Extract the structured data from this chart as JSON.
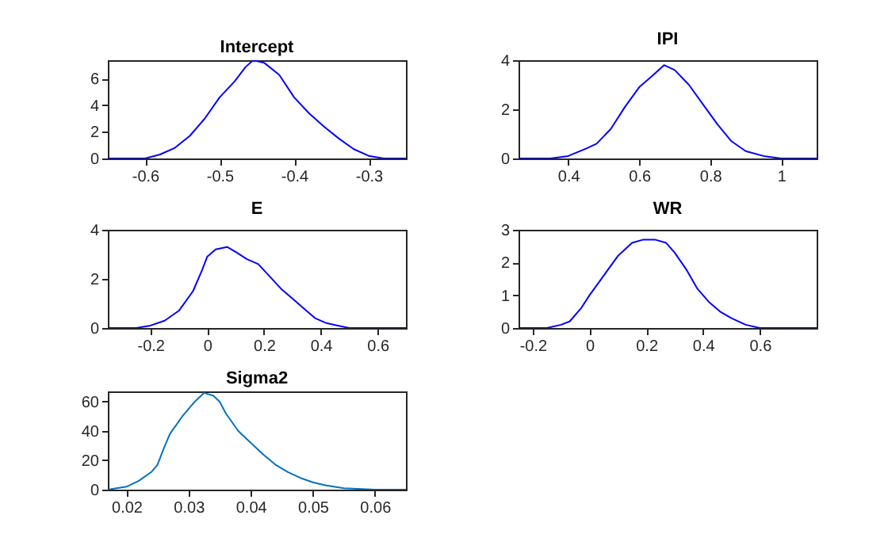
{
  "chart_data": [
    {
      "type": "line",
      "title": "Intercept",
      "x": [
        -0.65,
        -0.6,
        -0.58,
        -0.56,
        -0.54,
        -0.52,
        -0.5,
        -0.48,
        -0.465,
        -0.455,
        -0.44,
        -0.42,
        -0.4,
        -0.38,
        -0.36,
        -0.34,
        -0.32,
        -0.3,
        -0.28,
        -0.25
      ],
      "xlim": [
        -0.65,
        -0.25
      ],
      "xticks": [
        -0.6,
        -0.5,
        -0.4,
        -0.3
      ],
      "ylim": [
        0,
        7.4
      ],
      "yticks": [
        0,
        2,
        4,
        6
      ],
      "series": [
        {
          "color": "#0000ff",
          "values": [
            0,
            0,
            0.3,
            0.8,
            1.7,
            3.0,
            4.6,
            5.8,
            6.9,
            7.4,
            7.2,
            6.3,
            4.6,
            3.4,
            2.4,
            1.5,
            0.7,
            0.2,
            0,
            0
          ]
        }
      ]
    },
    {
      "type": "line",
      "title": "IPI",
      "x": [
        0.26,
        0.35,
        0.4,
        0.45,
        0.48,
        0.52,
        0.56,
        0.6,
        0.64,
        0.67,
        0.7,
        0.74,
        0.78,
        0.82,
        0.86,
        0.9,
        0.95,
        1.0,
        1.1
      ],
      "xlim": [
        0.26,
        1.1
      ],
      "xticks": [
        0.4,
        0.6,
        0.8,
        1
      ],
      "ylim": [
        0,
        4
      ],
      "yticks": [
        0,
        2,
        4
      ],
      "series": [
        {
          "color": "#0000ff",
          "values": [
            0,
            0,
            0.1,
            0.4,
            0.6,
            1.2,
            2.1,
            2.9,
            3.4,
            3.8,
            3.6,
            3.0,
            2.2,
            1.4,
            0.7,
            0.3,
            0.1,
            0,
            0
          ]
        }
      ]
    },
    {
      "type": "line",
      "title": "E",
      "x": [
        -0.35,
        -0.25,
        -0.2,
        -0.15,
        -0.1,
        -0.05,
        -0.02,
        0,
        0.03,
        0.07,
        0.1,
        0.14,
        0.18,
        0.22,
        0.26,
        0.3,
        0.34,
        0.38,
        0.42,
        0.46,
        0.5,
        0.7
      ],
      "xlim": [
        -0.35,
        0.7
      ],
      "xticks": [
        -0.2,
        0,
        0.2,
        0.4,
        0.6
      ],
      "ylim": [
        0,
        4
      ],
      "yticks": [
        0,
        2,
        4
      ],
      "series": [
        {
          "color": "#0000ff",
          "values": [
            0,
            0,
            0.1,
            0.3,
            0.7,
            1.5,
            2.3,
            2.9,
            3.2,
            3.3,
            3.1,
            2.8,
            2.6,
            2.1,
            1.6,
            1.2,
            0.8,
            0.4,
            0.2,
            0.1,
            0,
            0
          ]
        }
      ]
    },
    {
      "type": "line",
      "title": "WR",
      "x": [
        -0.25,
        -0.15,
        -0.1,
        -0.07,
        -0.03,
        0,
        0.05,
        0.1,
        0.15,
        0.19,
        0.23,
        0.27,
        0.3,
        0.34,
        0.38,
        0.42,
        0.46,
        0.5,
        0.55,
        0.6,
        0.65,
        0.8
      ],
      "xlim": [
        -0.25,
        0.8
      ],
      "xticks": [
        -0.2,
        0,
        0.2,
        0.4,
        0.6
      ],
      "ylim": [
        0,
        3
      ],
      "yticks": [
        0,
        1,
        2,
        3
      ],
      "series": [
        {
          "color": "#0000ff",
          "values": [
            0,
            0,
            0.1,
            0.2,
            0.6,
            1.0,
            1.6,
            2.2,
            2.6,
            2.7,
            2.7,
            2.6,
            2.3,
            1.8,
            1.2,
            0.8,
            0.5,
            0.3,
            0.1,
            0,
            0,
            0
          ]
        }
      ]
    },
    {
      "type": "line",
      "title": "Sigma2",
      "x": [
        0.017,
        0.02,
        0.022,
        0.024,
        0.025,
        0.026,
        0.027,
        0.029,
        0.031,
        0.0325,
        0.034,
        0.035,
        0.036,
        0.038,
        0.04,
        0.042,
        0.044,
        0.046,
        0.048,
        0.05,
        0.052,
        0.055,
        0.06,
        0.065
      ],
      "xlim": [
        0.017,
        0.065
      ],
      "xticks": [
        0.02,
        0.03,
        0.04,
        0.05,
        0.06
      ],
      "ylim": [
        0,
        67
      ],
      "yticks": [
        0,
        20,
        40,
        60
      ],
      "series": [
        {
          "color": "#0072bd",
          "values": [
            0,
            2,
            6,
            12,
            17,
            28,
            38,
            50,
            60,
            66,
            64,
            60,
            52,
            40,
            32,
            24,
            17,
            12,
            8,
            5,
            3,
            1,
            0,
            0
          ]
        }
      ]
    }
  ]
}
